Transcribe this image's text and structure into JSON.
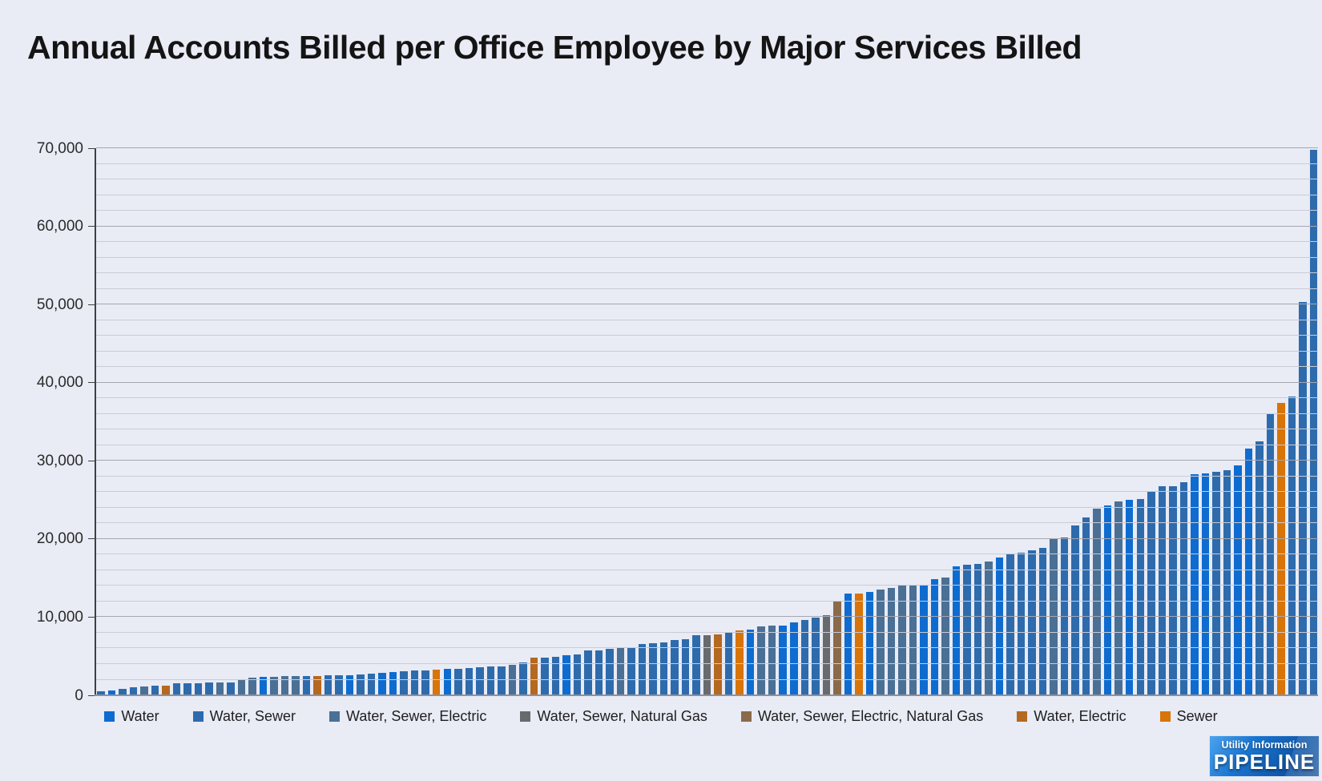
{
  "title": "Annual Accounts Billed per Office Employee by Major Services Billed",
  "logo": {
    "line1": "Utility Information",
    "line2": "PIPELINE"
  },
  "colors": {
    "W": "#0e6cd0",
    "WS": "#2e6bad",
    "WSE": "#4a7096",
    "WSNG": "#686a6d",
    "WSENG": "#8b6a4a",
    "WE": "#b5681f",
    "S": "#d87408"
  },
  "legend": [
    {
      "label": "Water",
      "code": "W"
    },
    {
      "label": "Water, Sewer",
      "code": "WS"
    },
    {
      "label": "Water, Sewer, Electric",
      "code": "WSE"
    },
    {
      "label": "Water, Sewer, Natural Gas",
      "code": "WSNG"
    },
    {
      "label": "Water, Sewer, Electric, Natural Gas",
      "code": "WSENG"
    },
    {
      "label": "Water, Electric",
      "code": "WE"
    },
    {
      "label": "Sewer",
      "code": "S"
    }
  ],
  "chart_data": {
    "type": "bar",
    "title": "Annual Accounts Billed per Office Employee by Major Services Billed",
    "xlabel": "",
    "ylabel": "",
    "grid": "on",
    "legend_position": "bottom",
    "y_axis": {
      "min": 0,
      "max": 70000,
      "major_step": 10000,
      "minor_step": 2000,
      "tick_values": [
        0,
        10000,
        20000,
        30000,
        40000,
        50000,
        60000,
        70000
      ],
      "tick_labels": [
        "0",
        "10,000",
        "20,000",
        "30,000",
        "40,000",
        "50,000",
        "60,000",
        "70,000"
      ]
    },
    "values": [
      550,
      600,
      800,
      1050,
      1150,
      1270,
      1280,
      1550,
      1580,
      1590,
      1620,
      1630,
      1690,
      2100,
      2250,
      2350,
      2400,
      2420,
      2430,
      2450,
      2500,
      2550,
      2570,
      2600,
      2700,
      2800,
      2850,
      2980,
      3100,
      3150,
      3200,
      3320,
      3350,
      3400,
      3450,
      3550,
      3640,
      3740,
      3880,
      4180,
      4820,
      4850,
      4900,
      5100,
      5240,
      5700,
      5780,
      5920,
      6050,
      6120,
      6530,
      6630,
      6730,
      7100,
      7210,
      7650,
      7720,
      7820,
      8000,
      8330,
      8440,
      8840,
      8930,
      8960,
      9300,
      9590,
      9950,
      10200,
      12000,
      13060,
      13060,
      13270,
      13500,
      13780,
      14050,
      14080,
      14110,
      14900,
      15030,
      16460,
      16660,
      16800,
      17070,
      17680,
      18090,
      18230,
      18570,
      18880,
      19970,
      20240,
      21700,
      22790,
      23910,
      24250,
      24800,
      25030,
      25100,
      26120,
      26770,
      26800,
      27310,
      28330,
      28400,
      28640,
      28840,
      29400,
      31600,
      32500,
      36100,
      37400,
      38200,
      50300,
      69800
    ],
    "bar_categories": [
      "WS",
      "W",
      "WS",
      "WS",
      "WSE",
      "WS",
      "WE",
      "WS",
      "WS",
      "WS",
      "WS",
      "WSE",
      "WS",
      "WSE",
      "WSE",
      "W",
      "WSE",
      "WSE",
      "WSE",
      "WS",
      "WE",
      "WS",
      "WS",
      "W",
      "WS",
      "WS",
      "W",
      "W",
      "WS",
      "WS",
      "WS",
      "S",
      "W",
      "WS",
      "WS",
      "WS",
      "WS",
      "WS",
      "WSE",
      "WS",
      "WE",
      "WS",
      "WS",
      "W",
      "WS",
      "WS",
      "WS",
      "WS",
      "WSE",
      "WS",
      "WS",
      "WS",
      "WS",
      "WS",
      "WS",
      "WS",
      "WSNG",
      "WE",
      "WS",
      "S",
      "W",
      "WSE",
      "WSE",
      "W",
      "W",
      "WS",
      "WS",
      "WSNG",
      "WSENG",
      "W",
      "S",
      "W",
      "WSE",
      "WSE",
      "WSE",
      "WSE",
      "W",
      "W",
      "WSE",
      "W",
      "WS",
      "WS",
      "WSE",
      "W",
      "WS",
      "WS",
      "WS",
      "WS",
      "WSE",
      "WS",
      "WS",
      "WS",
      "WSE",
      "W",
      "WSE",
      "W",
      "WS",
      "WS",
      "WS",
      "WS",
      "WS",
      "W",
      "W",
      "WS",
      "WS",
      "W",
      "W",
      "WS",
      "WS",
      "S",
      "WS",
      "WS",
      "WS"
    ]
  }
}
